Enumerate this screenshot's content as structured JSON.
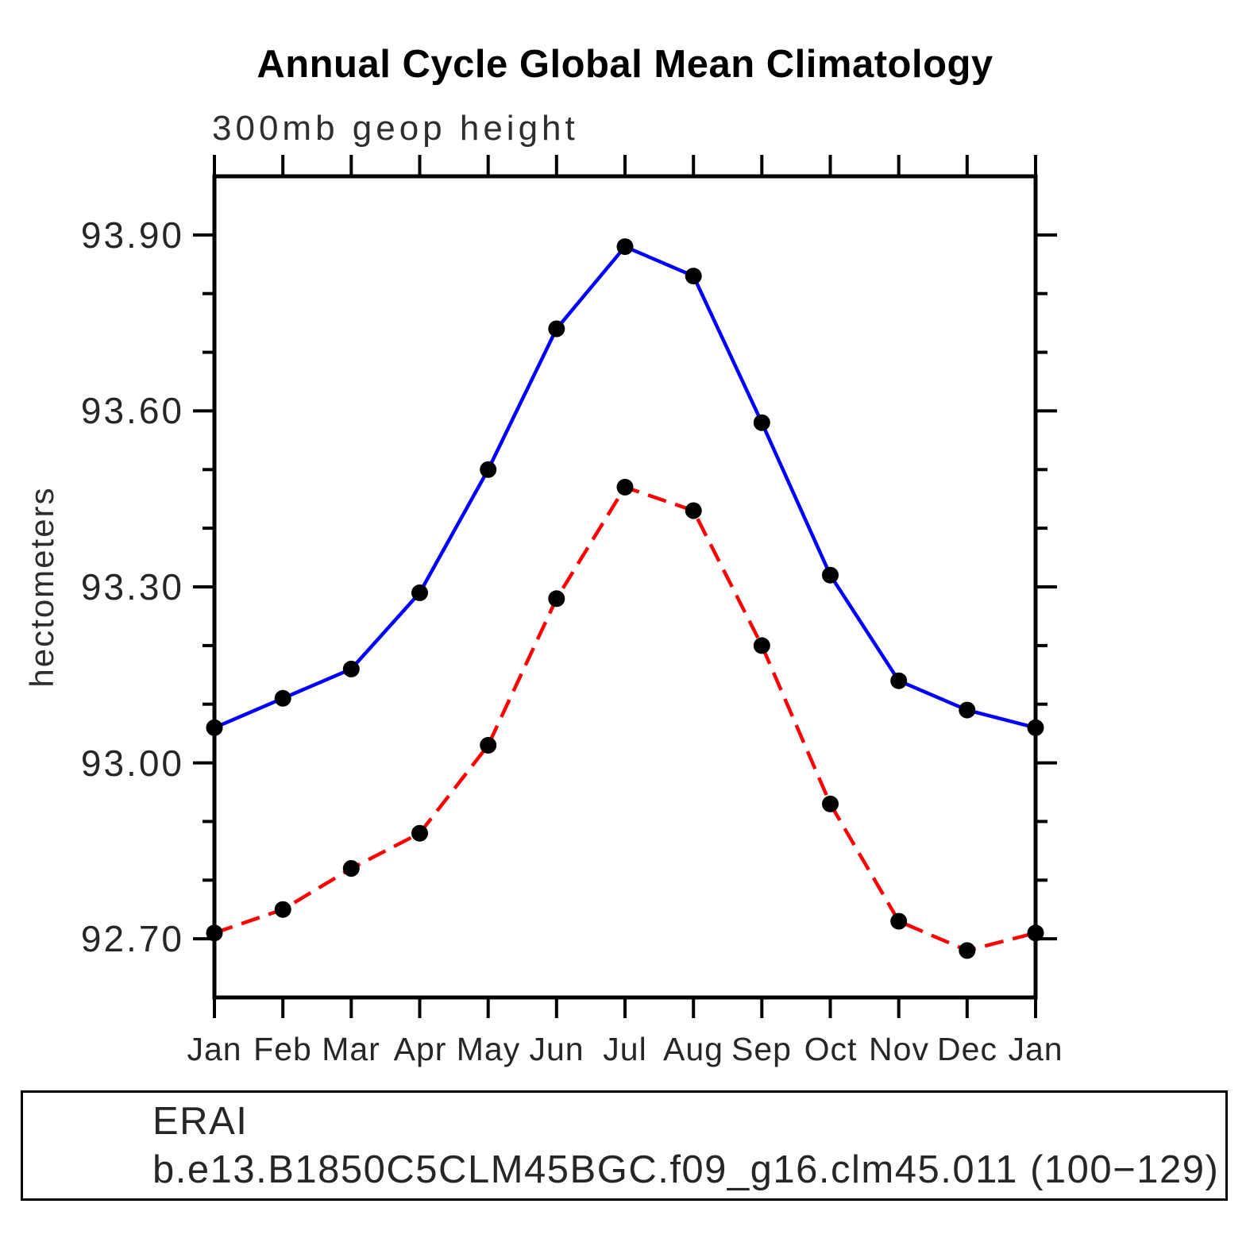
{
  "chart_data": {
    "type": "line",
    "title": "Annual Cycle Global Mean Climatology",
    "subtitle": "300mb geop height",
    "ylabel": "hectometers",
    "xlabel": "",
    "x_tick_labels": [
      "Jan",
      "Feb",
      "Mar",
      "Apr",
      "May",
      "Jun",
      "Jul",
      "Aug",
      "Sep",
      "Oct",
      "Nov",
      "Dec",
      "Jan"
    ],
    "y_tick_labels": [
      "92.70",
      "93.00",
      "93.30",
      "93.60",
      "93.90"
    ],
    "y_major_ticks": [
      92.7,
      93.0,
      93.3,
      93.6,
      93.9
    ],
    "y_minor_step": 0.1,
    "ylim": [
      92.6,
      94.0
    ],
    "grid": false,
    "legend_position": "bottom",
    "frame_color": "#000000",
    "marker_color": "#000000",
    "series": [
      {
        "name": "ERAI",
        "color": "#0000ff",
        "style": "solid",
        "marker": "circle",
        "values": [
          93.06,
          93.11,
          93.16,
          93.29,
          93.5,
          93.74,
          93.88,
          93.83,
          93.58,
          93.32,
          93.14,
          93.09,
          93.06
        ]
      },
      {
        "name": "b.e13.B1850C5CLM45BGC.f09_g16.clm45.011 (100−129)",
        "color": "#ff0000",
        "style": "dashed",
        "marker": "circle",
        "values": [
          92.71,
          92.75,
          92.82,
          92.88,
          93.03,
          93.28,
          93.47,
          93.43,
          93.2,
          92.93,
          92.73,
          92.68,
          92.71
        ]
      }
    ]
  }
}
